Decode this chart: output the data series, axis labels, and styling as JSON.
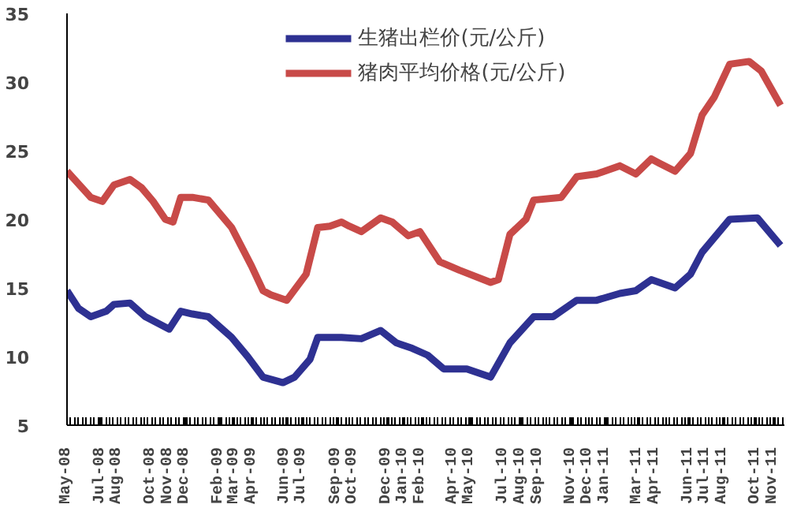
{
  "chart_data": {
    "type": "line",
    "xlim": [
      "2008-05-15",
      "2011-12-05"
    ],
    "ylim": [
      5,
      35
    ],
    "yticks": [
      5,
      10,
      15,
      20,
      25,
      30,
      35
    ],
    "xticks": [
      {
        "value": "2008-05-15",
        "label": "May-08"
      },
      {
        "value": "2008-07-15",
        "label": "Jul-08"
      },
      {
        "value": "2008-08-15",
        "label": "Aug-08"
      },
      {
        "value": "2008-10-15",
        "label": "Oct-08"
      },
      {
        "value": "2008-11-15",
        "label": "Nov-08"
      },
      {
        "value": "2008-12-15",
        "label": "Dec-08"
      },
      {
        "value": "2009-02-15",
        "label": "Feb-09"
      },
      {
        "value": "2009-03-15",
        "label": "Mar-09"
      },
      {
        "value": "2009-04-15",
        "label": "Apr-09"
      },
      {
        "value": "2009-06-15",
        "label": "Jun-09"
      },
      {
        "value": "2009-07-15",
        "label": "Jul-09"
      },
      {
        "value": "2009-09-15",
        "label": "Sep-09"
      },
      {
        "value": "2009-10-15",
        "label": "Oct-09"
      },
      {
        "value": "2009-12-15",
        "label": "Dec-09"
      },
      {
        "value": "2010-01-15",
        "label": "Jan-10"
      },
      {
        "value": "2010-02-15",
        "label": "Feb-10"
      },
      {
        "value": "2010-04-15",
        "label": "Apr-10"
      },
      {
        "value": "2010-05-15",
        "label": "May-10"
      },
      {
        "value": "2010-07-15",
        "label": "Jul-10"
      },
      {
        "value": "2010-08-15",
        "label": "Aug-10"
      },
      {
        "value": "2010-09-15",
        "label": "Sep-10"
      },
      {
        "value": "2010-11-15",
        "label": "Nov-10"
      },
      {
        "value": "2010-12-15",
        "label": "Dec-10"
      },
      {
        "value": "2011-01-15",
        "label": "Jan-11"
      },
      {
        "value": "2011-03-15",
        "label": "Mar-11"
      },
      {
        "value": "2011-04-15",
        "label": "Apr-11"
      },
      {
        "value": "2011-06-15",
        "label": "Jun-11"
      },
      {
        "value": "2011-07-15",
        "label": "Jul-11"
      },
      {
        "value": "2011-08-15",
        "label": "Aug-11"
      },
      {
        "value": "2011-10-15",
        "label": "Oct-11"
      },
      {
        "value": "2011-11-15",
        "label": "Nov-11"
      }
    ],
    "grid": false,
    "legend": "top",
    "line_style": "solid",
    "marker": "none",
    "series": [
      {
        "name": "生猪出栏价(元/公斤)",
        "color": "#2e3192",
        "x": [
          "2008-05-15",
          "2008-06-05",
          "2008-06-27",
          "2008-07-25",
          "2008-08-08",
          "2008-09-06",
          "2008-10-04",
          "2008-11-16",
          "2008-12-07",
          "2008-12-28",
          "2009-01-26",
          "2009-03-09",
          "2009-04-07",
          "2009-05-05",
          "2009-06-10",
          "2009-07-01",
          "2009-07-29",
          "2009-08-12",
          "2009-09-24",
          "2009-10-30",
          "2009-12-04",
          "2010-01-01",
          "2010-01-30",
          "2010-02-27",
          "2010-03-28",
          "2010-05-09",
          "2010-06-21",
          "2010-07-26",
          "2010-09-07",
          "2010-10-12",
          "2010-11-24",
          "2010-12-30",
          "2011-02-10",
          "2011-03-11",
          "2011-04-08",
          "2011-05-21",
          "2011-06-18",
          "2011-07-09",
          "2011-08-28",
          "2011-10-17",
          "2011-11-28"
        ],
        "values": [
          14.8,
          13.5,
          12.9,
          13.3,
          13.8,
          13.9,
          12.9,
          12,
          13.3,
          13.1,
          12.9,
          11.4,
          10,
          8.5,
          8.1,
          8.5,
          9.8,
          11.4,
          11.4,
          11.3,
          11.9,
          11,
          10.6,
          10.1,
          9.1,
          9.1,
          8.5,
          11,
          12.9,
          12.9,
          14.1,
          14.1,
          14.6,
          14.8,
          15.6,
          15,
          16,
          17.6,
          20,
          20.1,
          18.1
        ]
      },
      {
        "name": "猪肉平均价格(元/公斤)",
        "color": "#c84a48",
        "x": [
          "2008-05-15",
          "2008-06-27",
          "2008-07-18",
          "2008-08-08",
          "2008-09-06",
          "2008-09-27",
          "2008-10-18",
          "2008-11-09",
          "2008-11-23",
          "2008-12-07",
          "2008-12-28",
          "2009-01-26",
          "2009-03-09",
          "2009-04-14",
          "2009-05-05",
          "2009-05-19",
          "2009-06-17",
          "2009-07-22",
          "2009-08-12",
          "2009-09-03",
          "2009-09-24",
          "2009-10-08",
          "2009-10-30",
          "2009-12-04",
          "2009-12-25",
          "2010-01-23",
          "2010-02-13",
          "2010-03-21",
          "2010-04-25",
          "2010-06-21",
          "2010-07-05",
          "2010-07-26",
          "2010-08-24",
          "2010-09-07",
          "2010-10-27",
          "2010-11-24",
          "2010-12-30",
          "2011-02-10",
          "2011-03-11",
          "2011-04-08",
          "2011-04-22",
          "2011-05-21",
          "2011-06-18",
          "2011-07-09",
          "2011-07-31",
          "2011-08-28",
          "2011-10-02",
          "2011-10-24",
          "2011-11-28"
        ],
        "values": [
          23.5,
          21.6,
          21.3,
          22.5,
          22.9,
          22.3,
          21.3,
          20,
          19.8,
          21.6,
          21.6,
          21.4,
          19.4,
          16.6,
          14.8,
          14.5,
          14.1,
          16,
          19.4,
          19.5,
          19.8,
          19.5,
          19.1,
          20.1,
          19.8,
          18.8,
          19.1,
          16.9,
          16.3,
          15.4,
          15.6,
          18.9,
          20,
          21.4,
          21.6,
          23.1,
          23.3,
          23.9,
          23.3,
          24.4,
          24.1,
          23.5,
          24.8,
          27.6,
          28.9,
          31.3,
          31.5,
          30.8,
          28.3
        ]
      }
    ]
  }
}
